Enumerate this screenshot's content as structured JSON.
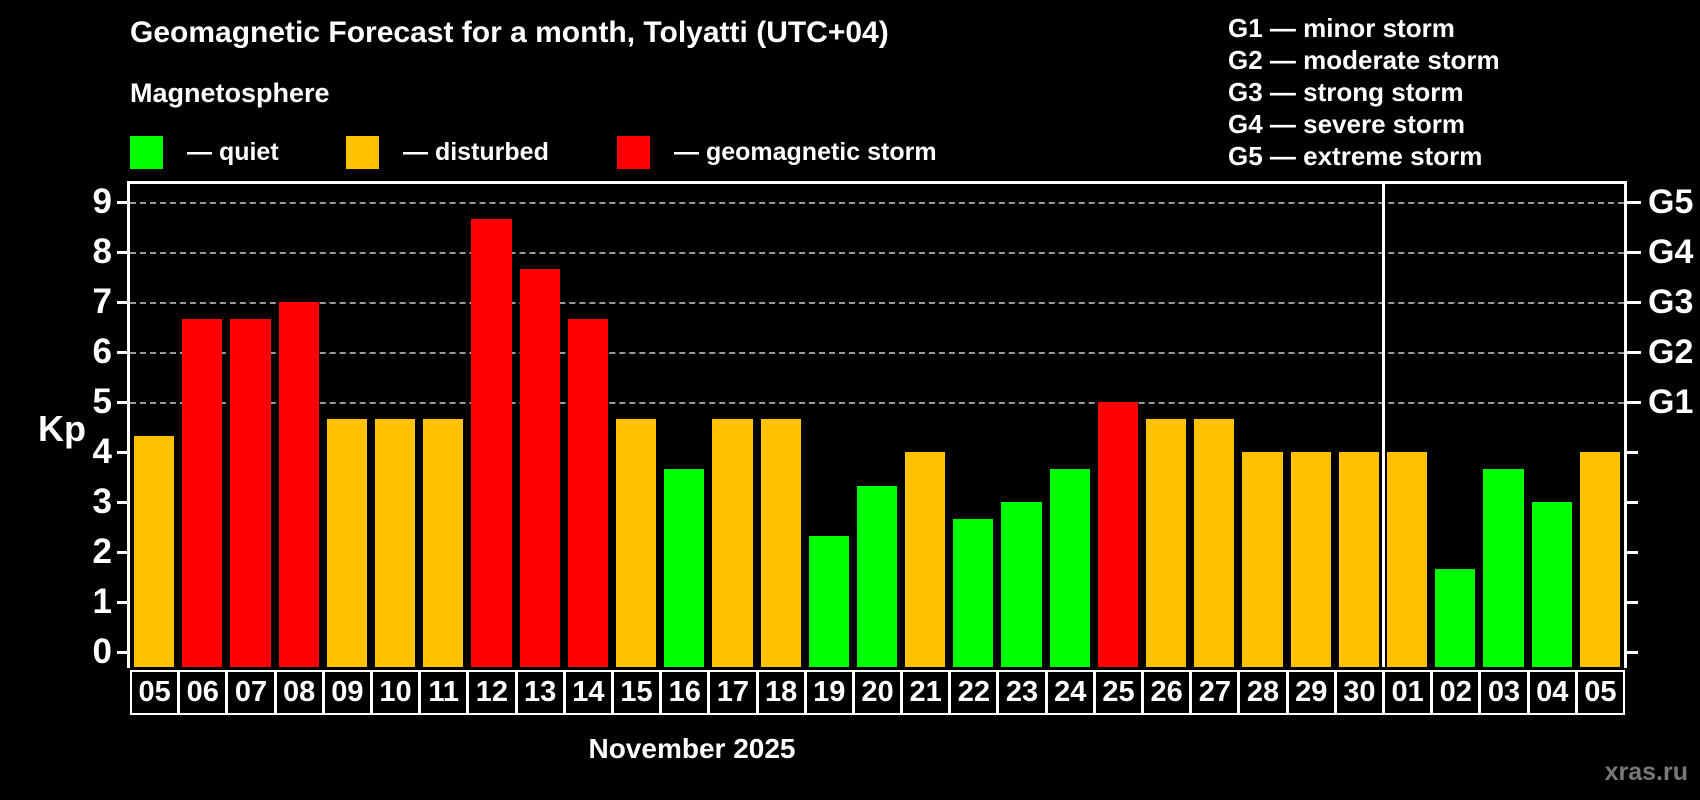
{
  "header": {
    "title": "Geomagnetic Forecast for a month, Tolyatti (UTC+04)",
    "subtitle": "Magnetosphere"
  },
  "legend": {
    "items": [
      {
        "key": "quiet",
        "label": "— quiet",
        "color": "#00ff00"
      },
      {
        "key": "disturbed",
        "label": "— disturbed",
        "color": "#ffc100"
      },
      {
        "key": "storm",
        "label": "— geomagnetic storm",
        "color": "#ff0000"
      }
    ]
  },
  "g_legend": {
    "items": [
      "G1 — minor storm",
      "G2 — moderate storm",
      "G3 — strong storm",
      "G4 — severe storm",
      "G5 — extreme storm"
    ]
  },
  "chart_data": {
    "type": "bar",
    "title": "Geomagnetic Forecast for a month, Tolyatti (UTC+04)",
    "ylabel": "Kp",
    "xlabel": "November 2025",
    "ylim": [
      0,
      9
    ],
    "yticks": [
      0,
      1,
      2,
      3,
      4,
      5,
      6,
      7,
      8,
      9
    ],
    "gridlines_at": [
      5,
      6,
      7,
      8,
      9
    ],
    "grid": "dashed horizontal at storm levels only",
    "legend_position": "top",
    "right_axis_labels": [
      {
        "kp": 5,
        "label": "G1"
      },
      {
        "kp": 6,
        "label": "G2"
      },
      {
        "kp": 7,
        "label": "G3"
      },
      {
        "kp": 8,
        "label": "G4"
      },
      {
        "kp": 9,
        "label": "G5"
      }
    ],
    "categories": [
      "05",
      "06",
      "07",
      "08",
      "09",
      "10",
      "11",
      "12",
      "13",
      "14",
      "15",
      "16",
      "17",
      "18",
      "19",
      "20",
      "21",
      "22",
      "23",
      "24",
      "25",
      "26",
      "27",
      "28",
      "29",
      "30",
      "01",
      "02",
      "03",
      "04",
      "05"
    ],
    "values": [
      4.33,
      6.67,
      6.67,
      7.0,
      4.67,
      4.67,
      4.67,
      8.67,
      7.67,
      6.67,
      4.67,
      3.67,
      4.67,
      4.67,
      2.33,
      3.33,
      4.0,
      2.67,
      3.0,
      3.67,
      5.0,
      4.67,
      4.67,
      4.0,
      4.0,
      4.0,
      4.0,
      1.67,
      3.67,
      3.0,
      4.0
    ],
    "statuses": [
      "disturbed",
      "storm",
      "storm",
      "storm",
      "disturbed",
      "disturbed",
      "disturbed",
      "storm",
      "storm",
      "storm",
      "disturbed",
      "quiet",
      "disturbed",
      "disturbed",
      "quiet",
      "quiet",
      "disturbed",
      "quiet",
      "quiet",
      "quiet",
      "storm",
      "disturbed",
      "disturbed",
      "disturbed",
      "disturbed",
      "disturbed",
      "disturbed",
      "quiet",
      "quiet",
      "quiet",
      "disturbed"
    ],
    "status_colors": {
      "quiet": "#00ff00",
      "disturbed": "#ffc100",
      "storm": "#ff0000"
    },
    "month_separator_after_index": 25
  },
  "footer": {
    "xlabel": "November 2025",
    "watermark": "xras.ru"
  }
}
